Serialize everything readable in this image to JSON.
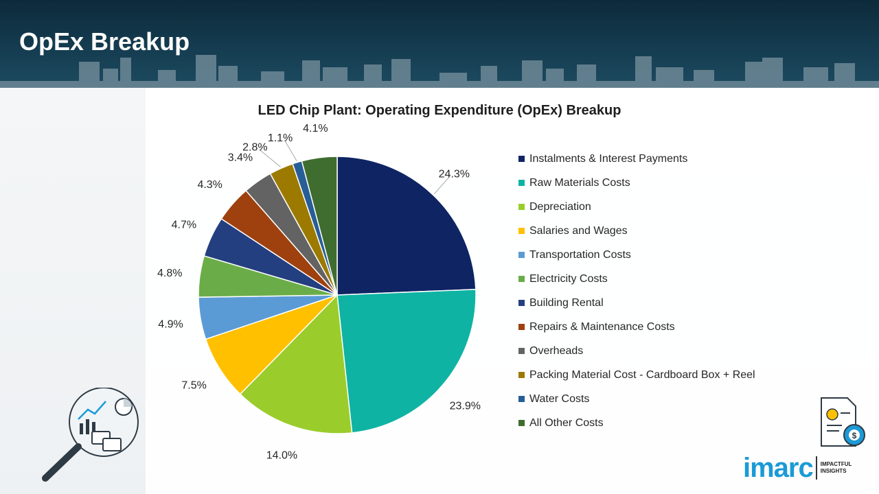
{
  "page": {
    "title": "OpEx Breakup"
  },
  "chart_data": {
    "type": "pie",
    "title": "LED Chip Plant: Operating Expenditure (OpEx) Breakup",
    "start_angle_deg": 0,
    "direction": "clockwise",
    "legend_position": "right",
    "slices": [
      {
        "label": "Instalments & Interest Payments",
        "value": 24.3,
        "display": "24.3%",
        "color": "#0f2463"
      },
      {
        "label": "Raw Materials Costs",
        "value": 23.9,
        "display": "23.9%",
        "color": "#0fb3a3"
      },
      {
        "label": "Depreciation",
        "value": 14.0,
        "display": "14.0%",
        "color": "#9acd2c"
      },
      {
        "label": "Salaries and Wages",
        "value": 7.5,
        "display": "7.5%",
        "color": "#ffc000"
      },
      {
        "label": "Transportation Costs",
        "value": 4.9,
        "display": "4.9%",
        "color": "#5b9bd5"
      },
      {
        "label": "Electricity Costs",
        "value": 4.8,
        "display": "4.8%",
        "color": "#6aad48"
      },
      {
        "label": "Building Rental",
        "value": 4.7,
        "display": "4.7%",
        "color": "#243f80"
      },
      {
        "label": "Repairs & Maintenance Costs",
        "value": 4.3,
        "display": "4.3%",
        "color": "#9e410e"
      },
      {
        "label": "Overheads",
        "value": 3.4,
        "display": "3.4%",
        "color": "#636363"
      },
      {
        "label": "Packing Material Cost - Cardboard Box + Reel",
        "value": 2.8,
        "display": "2.8%",
        "color": "#9c7a00"
      },
      {
        "label": "Water Costs",
        "value": 1.1,
        "display": "1.1%",
        "color": "#275e97"
      },
      {
        "label": "All Other Costs",
        "value": 4.1,
        "display": "4.1%",
        "color": "#3f6d2f"
      }
    ]
  },
  "branding": {
    "logo_text": "imarc",
    "tagline_line1": "IMPACTFUL",
    "tagline_line2": "INSIGHTS",
    "accent_color": "#1b9ad6"
  },
  "icons": {
    "analytics": "analytics-magnifier-icon",
    "report": "financial-report-icon"
  }
}
